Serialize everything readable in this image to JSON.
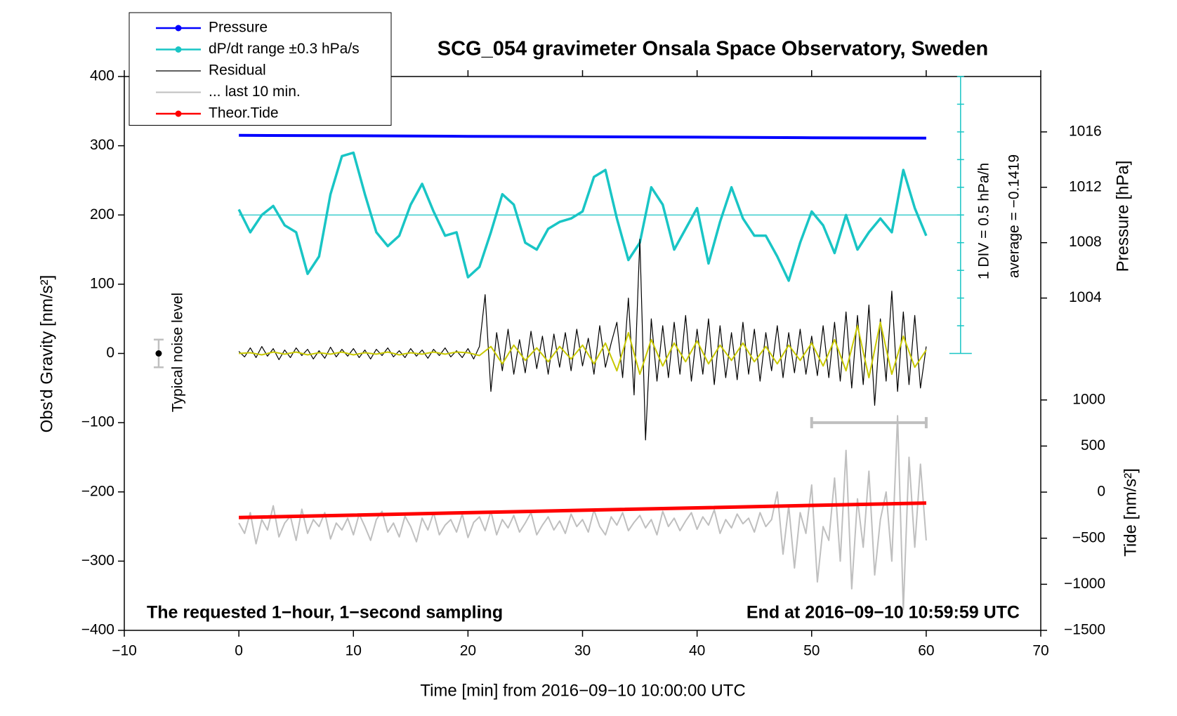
{
  "chart_data": {
    "type": "line",
    "title": "SCG_054 gravimeter Onsala Space Observatory, Sweden",
    "x_label": "Time [min] from 2016−09−10 10:00:00 UTC",
    "y_label": "Obs'd Gravity [nm/s²]",
    "y2_label": "Pressure [hPa]",
    "y3_label": "Tide [nm/s²]",
    "annotations": [
      "Typical noise level",
      "1 DIV = 0.5 hPa/h",
      "average = −0.1419",
      "The requested 1−hour, 1−second sampling",
      "End at 2016−09−10 10:59:59 UTC"
    ],
    "legend": "upper left",
    "xlim": [
      -10,
      70
    ],
    "xticks": [
      {
        "value": -10,
        "label": "−10"
      },
      0,
      10,
      20,
      30,
      40,
      50,
      60,
      70
    ],
    "ylim": [
      -400,
      400
    ],
    "yticks": [
      {
        "value": -400,
        "label": "−400"
      },
      {
        "value": -300,
        "label": "−300"
      },
      {
        "value": -200,
        "label": "−200"
      },
      {
        "value": -100,
        "label": "−100"
      },
      0,
      100,
      200,
      300,
      400
    ],
    "y2lim": [
      1000,
      1020
    ],
    "y2ticks": [
      1004,
      1008,
      1012,
      1016
    ],
    "y3lim": [
      -1500,
      1000
    ],
    "y3ticks": [
      {
        "value": -1500,
        "label": "−1500"
      },
      {
        "value": -1000,
        "label": "−1000"
      },
      {
        "value": -500,
        "label": "−500"
      },
      0,
      500,
      1000
    ],
    "dpdt_axis_x": 63,
    "dpdt_ticks": [
      0,
      40,
      80,
      120,
      160,
      200,
      240,
      280,
      320,
      360,
      400
    ],
    "dpdt_average": 200,
    "noise_level": {
      "x": -7,
      "value": 0,
      "error": 20
    },
    "last10_bar": {
      "x": [
        50,
        60
      ],
      "value": -100
    },
    "series": [
      {
        "name": "Pressure",
        "color": "#0000ff",
        "axis": "y2",
        "width": 4,
        "marker": true,
        "x": [
          0,
          10,
          20,
          30,
          40,
          50,
          60
        ],
        "values": [
          1015.75,
          1015.72,
          1015.68,
          1015.65,
          1015.62,
          1015.58,
          1015.55
        ]
      },
      {
        "name": "dP/dt range ±0.3 hPa/s",
        "color": "#19c5c5",
        "width": 3.5,
        "marker": true,
        "x": [
          0,
          1,
          2,
          3,
          4,
          5,
          6,
          7,
          8,
          9,
          10,
          11,
          12,
          13,
          14,
          15,
          16,
          17,
          18,
          19,
          20,
          21,
          22,
          23,
          24,
          25,
          26,
          27,
          28,
          29,
          30,
          31,
          32,
          33,
          34,
          35,
          36,
          37,
          38,
          39,
          40,
          41,
          42,
          43,
          44,
          45,
          46,
          47,
          48,
          49,
          50,
          51,
          52,
          53,
          54,
          55,
          56,
          57,
          58,
          59,
          60
        ],
        "values": [
          208,
          175,
          200,
          213,
          185,
          175,
          115,
          140,
          230,
          285,
          290,
          230,
          175,
          155,
          170,
          215,
          245,
          205,
          170,
          175,
          110,
          125,
          175,
          230,
          215,
          160,
          150,
          180,
          190,
          195,
          205,
          255,
          265,
          195,
          135,
          160,
          240,
          215,
          150,
          180,
          210,
          130,
          190,
          240,
          195,
          170,
          170,
          140,
          105,
          160,
          205,
          185,
          145,
          200,
          150,
          175,
          195,
          175,
          265,
          210,
          170
        ]
      },
      {
        "name": "Residual",
        "color": "#000000",
        "width": 1.2,
        "marker": false,
        "x": [
          0,
          0.5,
          1,
          1.5,
          2,
          2.5,
          3,
          3.5,
          4,
          4.5,
          5,
          5.5,
          6,
          6.5,
          7,
          7.5,
          8,
          8.5,
          9,
          9.5,
          10,
          10.5,
          11,
          11.5,
          12,
          12.5,
          13,
          13.5,
          14,
          14.5,
          15,
          15.5,
          16,
          16.5,
          17,
          17.5,
          18,
          18.5,
          19,
          19.5,
          20,
          20.5,
          21,
          21.5,
          22,
          22.5,
          23,
          23.5,
          24,
          24.5,
          25,
          25.5,
          26,
          26.5,
          27,
          27.5,
          28,
          28.5,
          29,
          29.5,
          30,
          30.5,
          31,
          31.5,
          32,
          32.5,
          33,
          33.5,
          34,
          34.5,
          35,
          35.5,
          36,
          36.5,
          37,
          37.5,
          38,
          38.5,
          39,
          39.5,
          40,
          40.5,
          41,
          41.5,
          42,
          42.5,
          43,
          43.5,
          44,
          44.5,
          45,
          45.5,
          46,
          46.5,
          47,
          47.5,
          48,
          48.5,
          49,
          49.5,
          50,
          50.5,
          51,
          51.5,
          52,
          52.5,
          53,
          53.5,
          54,
          54.5,
          55,
          55.5,
          56,
          56.5,
          57,
          57.5,
          58,
          58.5,
          59,
          59.5,
          60
        ],
        "values": [
          3,
          -5,
          8,
          -6,
          10,
          -4,
          7,
          -9,
          5,
          -6,
          8,
          -3,
          6,
          -8,
          4,
          -7,
          9,
          -5,
          6,
          -4,
          7,
          -6,
          5,
          -8,
          6,
          -3,
          8,
          -5,
          4,
          -6,
          7,
          -4,
          5,
          -7,
          6,
          -3,
          8,
          -5,
          4,
          -6,
          7,
          -8,
          10,
          85,
          -55,
          30,
          -25,
          35,
          -30,
          20,
          -28,
          32,
          -22,
          25,
          -30,
          28,
          -20,
          30,
          -25,
          35,
          -18,
          22,
          -30,
          40,
          -20,
          15,
          45,
          -35,
          80,
          -60,
          165,
          -125,
          50,
          -40,
          40,
          -35,
          45,
          -30,
          55,
          -40,
          35,
          -30,
          50,
          -45,
          40,
          -35,
          30,
          -38,
          45,
          -30,
          35,
          -40,
          30,
          -25,
          40,
          -35,
          30,
          -28,
          35,
          -30,
          25,
          -32,
          40,
          -35,
          45,
          -40,
          60,
          -50,
          55,
          -45,
          70,
          -75,
          50,
          -40,
          90,
          -55,
          60,
          -45,
          55,
          -50,
          10
        ]
      },
      {
        "color": "#c8c800",
        "width": 2,
        "marker": false,
        "x": [
          0,
          1,
          2,
          3,
          4,
          5,
          6,
          7,
          8,
          9,
          10,
          11,
          12,
          13,
          14,
          15,
          16,
          17,
          18,
          19,
          20,
          21,
          22,
          23,
          24,
          25,
          26,
          27,
          28,
          29,
          30,
          31,
          32,
          33,
          34,
          35,
          36,
          37,
          38,
          39,
          40,
          41,
          42,
          43,
          44,
          45,
          46,
          47,
          48,
          49,
          50,
          51,
          52,
          53,
          54,
          55,
          56,
          57,
          58,
          59,
          60
        ],
        "values": [
          0,
          1,
          -2,
          2,
          -1,
          2,
          -2,
          1,
          -1,
          2,
          -2,
          1,
          -1,
          2,
          -2,
          1,
          -1,
          2,
          -1,
          2,
          1,
          -3,
          10,
          -15,
          12,
          -10,
          8,
          -12,
          10,
          -8,
          12,
          -15,
          15,
          -25,
          30,
          -30,
          20,
          -18,
          15,
          -12,
          18,
          -15,
          12,
          -10,
          15,
          -12,
          10,
          -15,
          12,
          -10,
          15,
          -18,
          20,
          -25,
          40,
          -35,
          45,
          -30,
          25,
          -20,
          5
        ]
      },
      {
        "name": "... last 10 min.",
        "color": "#bfbfbf",
        "width": 2,
        "marker": false,
        "x": [
          0,
          0.5,
          1,
          1.5,
          2,
          2.5,
          3,
          3.5,
          4,
          4.5,
          5,
          5.5,
          6,
          6.5,
          7,
          7.5,
          8,
          8.5,
          9,
          9.5,
          10,
          10.5,
          11,
          11.5,
          12,
          12.5,
          13,
          13.5,
          14,
          14.5,
          15,
          15.5,
          16,
          16.5,
          17,
          17.5,
          18,
          18.5,
          19,
          19.5,
          20,
          20.5,
          21,
          21.5,
          22,
          22.5,
          23,
          23.5,
          24,
          24.5,
          25,
          25.5,
          26,
          26.5,
          27,
          27.5,
          28,
          28.5,
          29,
          29.5,
          30,
          30.5,
          31,
          31.5,
          32,
          32.5,
          33,
          33.5,
          34,
          34.5,
          35,
          35.5,
          36,
          36.5,
          37,
          37.5,
          38,
          38.5,
          39,
          39.5,
          40,
          40.5,
          41,
          41.5,
          42,
          42.5,
          43,
          43.5,
          44,
          44.5,
          45,
          45.5,
          46,
          46.5,
          47,
          47.5,
          48,
          48.5,
          49,
          49.5,
          50,
          50.5,
          51,
          51.5,
          52,
          52.5,
          53,
          53.5,
          54,
          54.5,
          55,
          55.5,
          56,
          56.5,
          57,
          57.5,
          58,
          58.5,
          59,
          59.5,
          60
        ],
        "values": [
          -245,
          -260,
          -230,
          -275,
          -240,
          -255,
          -220,
          -265,
          -245,
          -235,
          -270,
          -225,
          -260,
          -240,
          -250,
          -230,
          -268,
          -245,
          -255,
          -238,
          -262,
          -232,
          -250,
          -270,
          -240,
          -228,
          -258,
          -245,
          -265,
          -235,
          -250,
          -272,
          -238,
          -255,
          -230,
          -262,
          -248,
          -240,
          -258,
          -232,
          -266,
          -244,
          -236,
          -256,
          -228,
          -262,
          -240,
          -252,
          -234,
          -258,
          -245,
          -230,
          -262,
          -248,
          -236,
          -255,
          -242,
          -260,
          -232,
          -250,
          -240,
          -258,
          -226,
          -250,
          -262,
          -236,
          -248,
          -230,
          -256,
          -244,
          -234,
          -252,
          -240,
          -262,
          -228,
          -250,
          -238,
          -256,
          -242,
          -230,
          -254,
          -236,
          -248,
          -226,
          -260,
          -240,
          -252,
          -232,
          -246,
          -238,
          -258,
          -230,
          -250,
          -240,
          -200,
          -290,
          -220,
          -310,
          -230,
          -260,
          -190,
          -330,
          -250,
          -270,
          -180,
          -300,
          -140,
          -340,
          -210,
          -280,
          -170,
          -320,
          -240,
          -200,
          -300,
          -90,
          -370,
          -150,
          -280,
          -160,
          -270
        ]
      },
      {
        "name": "Theor.Tide",
        "color": "#ff0000",
        "axis": "y3",
        "width": 5,
        "marker": true,
        "x": [
          0,
          30,
          60
        ],
        "values": [
          -276,
          -197,
          -118
        ]
      }
    ]
  }
}
